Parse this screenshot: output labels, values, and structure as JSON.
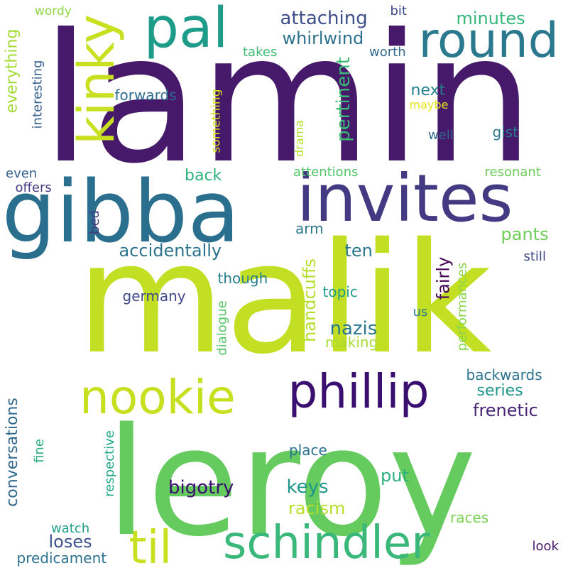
{
  "words": [
    {
      "text": "lamin",
      "color": "#46196b",
      "vertical": false
    },
    {
      "text": "malik",
      "color": "#c2df23",
      "vertical": false
    },
    {
      "text": "leroy",
      "color": "#65cb5e",
      "vertical": false
    },
    {
      "text": "gibba",
      "color": "#2a6f8e",
      "vertical": false
    },
    {
      "text": "invites",
      "color": "#433a83",
      "vertical": false
    },
    {
      "text": "pal",
      "color": "#1f9c89",
      "vertical": false
    },
    {
      "text": "round",
      "color": "#2a798e",
      "vertical": false
    },
    {
      "text": "kinky",
      "color": "#c9e020",
      "vertical": true
    },
    {
      "text": "phillip",
      "color": "#3b0f6f",
      "vertical": false
    },
    {
      "text": "nookie",
      "color": "#c6e020",
      "vertical": false
    },
    {
      "text": "schindler",
      "color": "#3ab87a",
      "vertical": false
    },
    {
      "text": "til",
      "color": "#c9e020",
      "vertical": false
    },
    {
      "text": "attaching",
      "color": "#3d4e8a",
      "vertical": false
    },
    {
      "text": "whirlwind",
      "color": "#2d708e",
      "vertical": false
    },
    {
      "text": "minutes",
      "color": "#35b779",
      "vertical": false
    },
    {
      "text": "bit",
      "color": "#3e4989",
      "vertical": false
    },
    {
      "text": "worth",
      "color": "#31688e",
      "vertical": false
    },
    {
      "text": "takes",
      "color": "#3fbc73",
      "vertical": false
    },
    {
      "text": "wordy",
      "color": "#8fd744",
      "vertical": false
    },
    {
      "text": "everything",
      "color": "#a5db36",
      "vertical": true
    },
    {
      "text": "interesting",
      "color": "#355f8d",
      "vertical": true
    },
    {
      "text": "something",
      "color": "#d8e219",
      "vertical": true
    },
    {
      "text": "pertinent",
      "color": "#3bbb75",
      "vertical": true
    },
    {
      "text": "drama",
      "color": "#b5de2b",
      "vertical": true
    },
    {
      "text": "forwards",
      "color": "#2e6e8e",
      "vertical": false
    },
    {
      "text": "next",
      "color": "#26828e",
      "vertical": false
    },
    {
      "text": "maybe",
      "color": "#e5e419",
      "vertical": false
    },
    {
      "text": "well",
      "color": "#31688e",
      "vertical": false
    },
    {
      "text": "gist",
      "color": "#2a788e",
      "vertical": false
    },
    {
      "text": "back",
      "color": "#2db27d",
      "vertical": false
    },
    {
      "text": "attentions",
      "color": "#52c569",
      "vertical": false
    },
    {
      "text": "resonant",
      "color": "#6ccd5a",
      "vertical": false
    },
    {
      "text": "even",
      "color": "#355f8d",
      "vertical": false
    },
    {
      "text": "offers",
      "color": "#453882",
      "vertical": false
    },
    {
      "text": "bed",
      "color": "#453882",
      "vertical": true
    },
    {
      "text": "arm",
      "color": "#2a788e",
      "vertical": false
    },
    {
      "text": "pants",
      "color": "#6ece58",
      "vertical": false
    },
    {
      "text": "accidentally",
      "color": "#2c738e",
      "vertical": false
    },
    {
      "text": "ten",
      "color": "#2a788e",
      "vertical": false
    },
    {
      "text": "fairly",
      "color": "#440154",
      "vertical": true
    },
    {
      "text": "handcuffs",
      "color": "#b5de2b",
      "vertical": true
    },
    {
      "text": "performances",
      "color": "#86d549",
      "vertical": true
    },
    {
      "text": "still",
      "color": "#404688",
      "vertical": false
    },
    {
      "text": "though",
      "color": "#277f8e",
      "vertical": false
    },
    {
      "text": "topic",
      "color": "#1f9e89",
      "vertical": false
    },
    {
      "text": "germany",
      "color": "#3e4989",
      "vertical": false
    },
    {
      "text": "dialogue",
      "color": "#55c667",
      "vertical": true
    },
    {
      "text": "us",
      "color": "#2a788e",
      "vertical": false
    },
    {
      "text": "nazis",
      "color": "#2a788e",
      "vertical": false
    },
    {
      "text": "making",
      "color": "#a8db34",
      "vertical": false
    },
    {
      "text": "backwards",
      "color": "#2c728e",
      "vertical": false
    },
    {
      "text": "conversations",
      "color": "#31688e",
      "vertical": true
    },
    {
      "text": "series",
      "color": "#1f958b",
      "vertical": false
    },
    {
      "text": "frenetic",
      "color": "#482475",
      "vertical": false
    },
    {
      "text": "fine",
      "color": "#29af7f",
      "vertical": true
    },
    {
      "text": "respective",
      "color": "#22a884",
      "vertical": true
    },
    {
      "text": "place",
      "color": "#2c728e",
      "vertical": false
    },
    {
      "text": "put",
      "color": "#2cb17e",
      "vertical": false
    },
    {
      "text": "bigotry",
      "color": "#3b0f6f",
      "vertical": false
    },
    {
      "text": "keys",
      "color": "#1f968b",
      "vertical": false
    },
    {
      "text": "racism",
      "color": "#b8de29",
      "vertical": false
    },
    {
      "text": "races",
      "color": "#7ad151",
      "vertical": false
    },
    {
      "text": "watch",
      "color": "#1f9e89",
      "vertical": false
    },
    {
      "text": "loses",
      "color": "#3b528b",
      "vertical": false
    },
    {
      "text": "predicament",
      "color": "#2c728e",
      "vertical": false
    },
    {
      "text": "look",
      "color": "#481a6c",
      "vertical": false
    }
  ]
}
